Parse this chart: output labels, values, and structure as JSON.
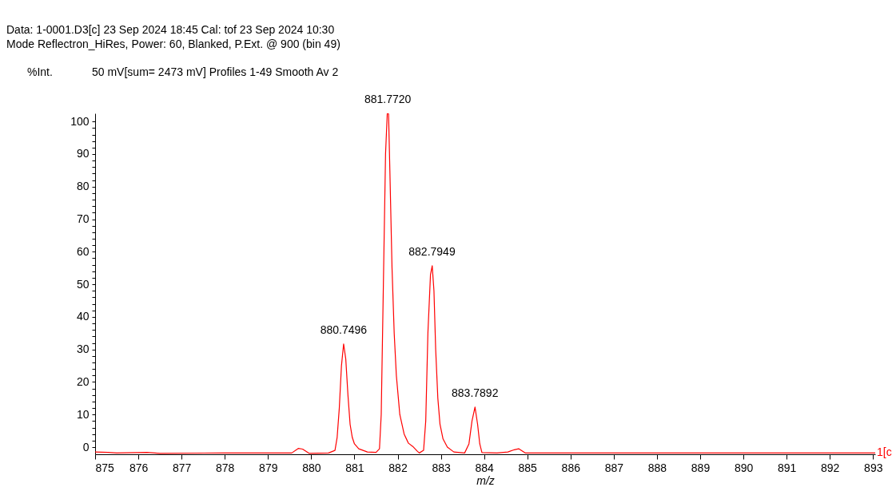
{
  "chart_data": {
    "type": "line",
    "title": "Data: 1-0001.D3[c] 23 Sep 2024 18:45 Cal: tof 23 Sep 2024 10:30",
    "subtitle": "Mode Reflectron_HiRes, Power: 60, Blanked, P.Ext. @ 900 (bin 49)",
    "xlabel": "m/z",
    "ylabel": "%Int.",
    "annotations": [
      "50 mV[sum= 2473 mV]  Profiles 1-49 Smooth Av 2",
      "1[c",
      {
        "text": "880.7496",
        "x": 880.7496,
        "y": 31.7
      },
      {
        "text": "881.7720",
        "x": 881.772,
        "y": 102.5
      },
      {
        "text": "882.7949",
        "x": 882.7949,
        "y": 55.7
      },
      {
        "text": "883.7892",
        "x": 883.7892,
        "y": 12.3
      }
    ],
    "series": [
      {
        "color": "#ff0000",
        "x": [
          875,
          875.3,
          875.5,
          876.2,
          876.5,
          878,
          879,
          879.55,
          879.7,
          879.8,
          879.95,
          880.4,
          880.55,
          880.6,
          880.65,
          880.7,
          880.75,
          880.8,
          880.85,
          880.9,
          880.95,
          881.0,
          881.1,
          881.3,
          881.5,
          881.58,
          881.62,
          881.67,
          881.72,
          881.76,
          881.79,
          881.82,
          881.87,
          881.92,
          881.97,
          882.05,
          882.15,
          882.25,
          882.35,
          882.45,
          882.5,
          882.6,
          882.65,
          882.7,
          882.76,
          882.8,
          882.84,
          882.88,
          882.93,
          882.98,
          883.05,
          883.15,
          883.3,
          883.55,
          883.65,
          883.72,
          883.79,
          883.85,
          883.9,
          883.95,
          884.3,
          884.55,
          884.7,
          884.8,
          884.95,
          886,
          893.05
        ],
        "values": [
          -1.5,
          -1.6,
          -1.8,
          -1.6,
          -1.9,
          -1.8,
          -1.8,
          -1.8,
          -0.4,
          -0.6,
          -1.9,
          -1.8,
          -1.0,
          3,
          12,
          25,
          31.7,
          27,
          16,
          7,
          3,
          1,
          -0.5,
          -1.5,
          -1.6,
          -0.5,
          10,
          50,
          90,
          102.5,
          102.3,
          85,
          55,
          35,
          22,
          10,
          4,
          1.2,
          0.2,
          -1.2,
          -1.8,
          -1.0,
          8,
          35,
          53,
          55.7,
          48,
          30,
          15,
          7,
          2.5,
          0,
          -1.5,
          -1.8,
          1,
          8,
          12.3,
          7,
          1,
          -1.7,
          -1.8,
          -1.5,
          -0.8,
          -0.5,
          -1.8,
          -1.8,
          -1.8
        ]
      }
    ],
    "xlim": [
      875,
      893.05
    ],
    "ylim": [
      -2.2,
      102.5
    ],
    "xticks": [
      875,
      876,
      877,
      878,
      879,
      880,
      881,
      882,
      883,
      884,
      885,
      886,
      887,
      888,
      889,
      890,
      891,
      892,
      893
    ],
    "yticks": [
      0,
      {
        "value": 2,
        "label": null
      },
      {
        "value": 4,
        "label": null
      },
      {
        "value": 6,
        "label": null
      },
      {
        "value": 8,
        "label": null
      },
      10,
      {
        "value": 12,
        "label": null
      },
      {
        "value": 14,
        "label": null
      },
      {
        "value": 16,
        "label": null
      },
      {
        "value": 18,
        "label": null
      },
      20,
      {
        "value": 22,
        "label": null
      },
      {
        "value": 24,
        "label": null
      },
      {
        "value": 26,
        "label": null
      },
      {
        "value": 28,
        "label": null
      },
      30,
      {
        "value": 32,
        "label": null
      },
      {
        "value": 34,
        "label": null
      },
      {
        "value": 36,
        "label": null
      },
      {
        "value": 38,
        "label": null
      },
      40,
      {
        "value": 42,
        "label": null
      },
      {
        "value": 44,
        "label": null
      },
      {
        "value": 46,
        "label": null
      },
      {
        "value": 48,
        "label": null
      },
      50,
      {
        "value": 52,
        "label": null
      },
      {
        "value": 54,
        "label": null
      },
      {
        "value": 56,
        "label": null
      },
      {
        "value": 58,
        "label": null
      },
      60,
      {
        "value": 62,
        "label": null
      },
      {
        "value": 64,
        "label": null
      },
      {
        "value": 66,
        "label": null
      },
      {
        "value": 68,
        "label": null
      },
      70,
      {
        "value": 72,
        "label": null
      },
      {
        "value": 74,
        "label": null
      },
      {
        "value": 76,
        "label": null
      },
      {
        "value": 78,
        "label": null
      },
      80,
      {
        "value": 82,
        "label": null
      },
      {
        "value": 84,
        "label": null
      },
      {
        "value": 86,
        "label": null
      },
      {
        "value": 88,
        "label": null
      },
      90,
      {
        "value": 92,
        "label": null
      },
      {
        "value": 94,
        "label": null
      },
      {
        "value": 96,
        "label": null
      },
      {
        "value": 98,
        "label": null
      },
      100
    ],
    "grid": false,
    "marker": "none",
    "line_style": "solid"
  }
}
